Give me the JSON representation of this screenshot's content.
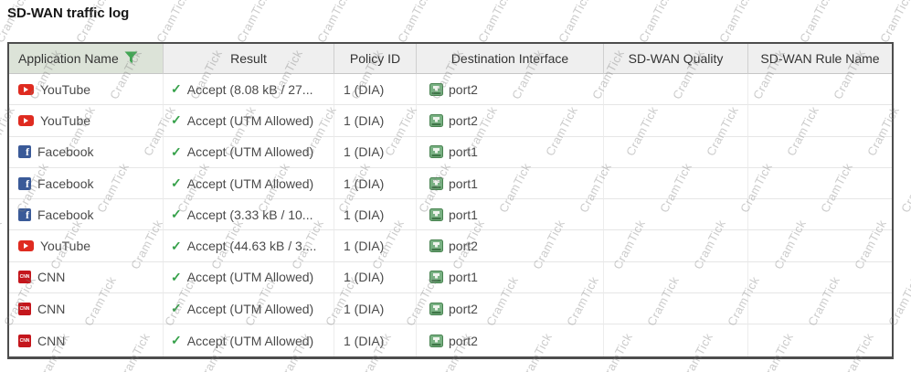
{
  "title": "SD-WAN traffic log",
  "watermark": {
    "text": "CramTick"
  },
  "colors": {
    "accent_green": "#36a14a",
    "filtered_header_bg": "#dce3d8",
    "header_bg": "#efefef",
    "youtube_red": "#df2b20",
    "facebook_blue": "#3a5a98",
    "cnn_red": "#c4161c",
    "port_green": "#6fae7c"
  },
  "icons": {
    "filter": "filter-funnel-icon",
    "accept": "check-icon",
    "destination": "ethernet-port-icon"
  },
  "table": {
    "columns": [
      {
        "label": "Application Name",
        "filtered": true
      },
      {
        "label": "Result"
      },
      {
        "label": "Policy ID"
      },
      {
        "label": "Destination Interface"
      },
      {
        "label": "SD-WAN Quality"
      },
      {
        "label": "SD-WAN Rule Name"
      }
    ],
    "rows": [
      {
        "app": "YouTube",
        "icon": "youtube",
        "result": "Accept (8.08 kB / 27...",
        "policy_id": "1 (DIA)",
        "dest_interface": "port2",
        "sdwan_quality": "",
        "sdwan_rule": ""
      },
      {
        "app": "YouTube",
        "icon": "youtube",
        "result": "Accept (UTM Allowed)",
        "policy_id": "1 (DIA)",
        "dest_interface": "port2",
        "sdwan_quality": "",
        "sdwan_rule": ""
      },
      {
        "app": "Facebook",
        "icon": "facebook",
        "result": "Accept (UTM Allowed)",
        "policy_id": "1 (DIA)",
        "dest_interface": "port1",
        "sdwan_quality": "",
        "sdwan_rule": ""
      },
      {
        "app": "Facebook",
        "icon": "facebook",
        "result": "Accept (UTM Allowed)",
        "policy_id": "1 (DIA)",
        "dest_interface": "port1",
        "sdwan_quality": "",
        "sdwan_rule": ""
      },
      {
        "app": "Facebook",
        "icon": "facebook",
        "result": "Accept (3.33 kB / 10...",
        "policy_id": "1 (DIA)",
        "dest_interface": "port1",
        "sdwan_quality": "",
        "sdwan_rule": ""
      },
      {
        "app": "YouTube",
        "icon": "youtube",
        "result": "Accept (44.63 kB / 3....",
        "policy_id": "1 (DIA)",
        "dest_interface": "port2",
        "sdwan_quality": "",
        "sdwan_rule": ""
      },
      {
        "app": "CNN",
        "icon": "cnn",
        "result": "Accept (UTM Allowed)",
        "policy_id": "1 (DIA)",
        "dest_interface": "port1",
        "sdwan_quality": "",
        "sdwan_rule": ""
      },
      {
        "app": "CNN",
        "icon": "cnn",
        "result": "Accept (UTM Allowed)",
        "policy_id": "1 (DIA)",
        "dest_interface": "port2",
        "sdwan_quality": "",
        "sdwan_rule": ""
      },
      {
        "app": "CNN",
        "icon": "cnn",
        "result": "Accept (UTM Allowed)",
        "policy_id": "1 (DIA)",
        "dest_interface": "port2",
        "sdwan_quality": "",
        "sdwan_rule": ""
      }
    ]
  }
}
